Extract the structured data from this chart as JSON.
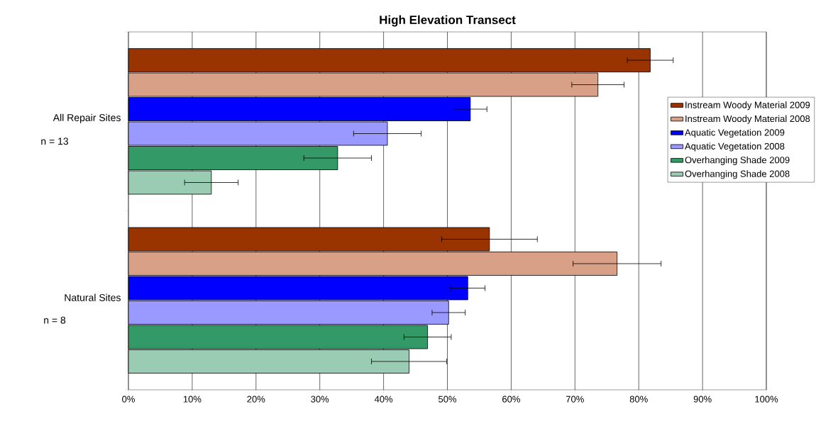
{
  "chart_data": {
    "type": "bar",
    "orientation": "horizontal",
    "title": "High Elevation Transect",
    "categories": [
      "All Repair Sites",
      "Natural Sites"
    ],
    "annotations": [
      "n = 13",
      "n = 8"
    ],
    "series": [
      {
        "name": "Instream Woody Material 2009",
        "color": "#993300",
        "values": [
          81.8,
          56.6
        ],
        "errors": [
          3.6,
          7.5
        ]
      },
      {
        "name": "Instream Woody Material 2008",
        "color": "#d9a088",
        "values": [
          73.6,
          76.6
        ],
        "errors": [
          4.1,
          6.9
        ]
      },
      {
        "name": "Aquatic Vegetation 2009",
        "color": "#0000ff",
        "values": [
          53.6,
          53.2
        ],
        "errors": [
          2.6,
          2.7
        ]
      },
      {
        "name": "Aquatic Vegetation 2008",
        "color": "#9999ff",
        "values": [
          40.6,
          50.2
        ],
        "errors": [
          5.3,
          2.6
        ]
      },
      {
        "name": "Overhanging Shade 2009",
        "color": "#339966",
        "values": [
          32.8,
          46.9
        ],
        "errors": [
          5.3,
          3.7
        ]
      },
      {
        "name": "Overhanging Shade 2008",
        "color": "#99ccb2",
        "values": [
          13.0,
          44.0
        ],
        "errors": [
          4.2,
          5.9
        ]
      }
    ],
    "xlim": [
      0,
      100
    ],
    "xticks": [
      {
        "value": 0,
        "label": "0%"
      },
      {
        "value": 10,
        "label": "10%"
      },
      {
        "value": 20,
        "label": "20%"
      },
      {
        "value": 30,
        "label": "30%"
      },
      {
        "value": 40,
        "label": "40%"
      },
      {
        "value": 50,
        "label": "50%"
      },
      {
        "value": 60,
        "label": "60%"
      },
      {
        "value": 70,
        "label": "70%"
      },
      {
        "value": 80,
        "label": "80%"
      },
      {
        "value": 90,
        "label": "90%"
      },
      {
        "value": 100,
        "label": "100%"
      }
    ],
    "grid": "x",
    "legend": "right"
  }
}
